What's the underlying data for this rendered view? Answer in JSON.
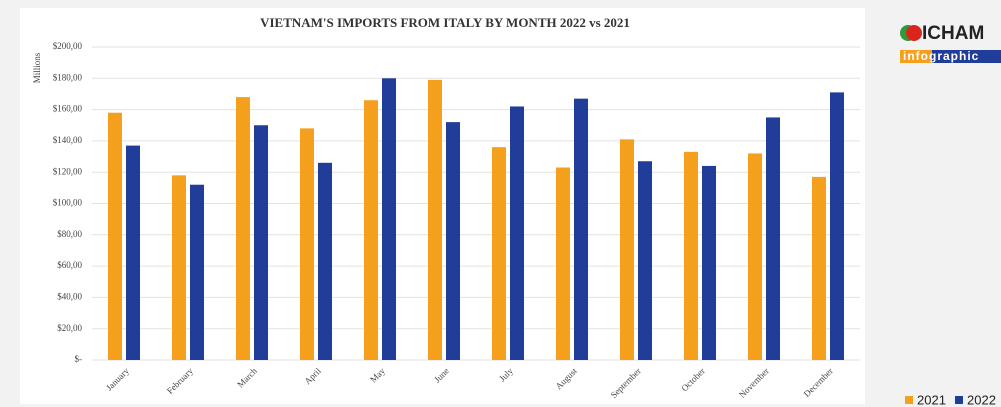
{
  "chart_data": {
    "type": "bar",
    "title": "VIETNAM'S IMPORTS FROM ITALY BY MONTH 2022 vs 2021",
    "y_label": "Millions",
    "categories": [
      "January",
      "February",
      "March",
      "April",
      "May",
      "June",
      "July",
      "August",
      "September",
      "October",
      "November",
      "December"
    ],
    "series": [
      {
        "name": "2021",
        "color": "#f5a01c",
        "values": [
          158,
          118,
          168,
          148,
          166,
          179,
          136,
          123,
          141,
          133,
          132,
          117
        ]
      },
      {
        "name": "2022",
        "color": "#1f3d99",
        "values": [
          137,
          112,
          150,
          126,
          180,
          152,
          162,
          167,
          127,
          124,
          155,
          171
        ]
      }
    ],
    "ylim": [
      0,
      200
    ],
    "yticks": [
      {
        "value": 0,
        "label": "$-"
      },
      {
        "value": 20,
        "label": "$20,00"
      },
      {
        "value": 40,
        "label": "$40,00"
      },
      {
        "value": 60,
        "label": "$60,00"
      },
      {
        "value": 80,
        "label": "$80,00"
      },
      {
        "value": 100,
        "label": "$100,00"
      },
      {
        "value": 120,
        "label": "$120,00"
      },
      {
        "value": 140,
        "label": "$140,00"
      },
      {
        "value": 160,
        "label": "$160,00"
      },
      {
        "value": 180,
        "label": "$180,00"
      },
      {
        "value": 200,
        "label": "$200,00"
      }
    ],
    "grid": true,
    "legend": "bottom-right"
  },
  "logo": {
    "name": "ICHAM",
    "tagline": "infographic"
  }
}
